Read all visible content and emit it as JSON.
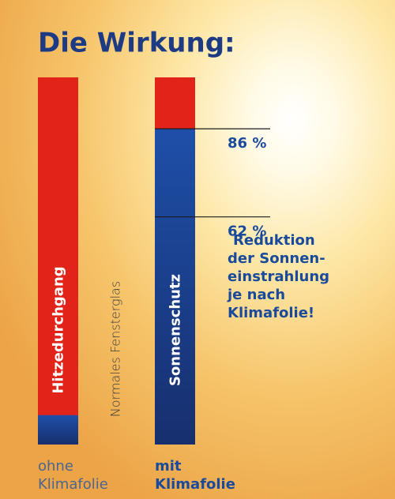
{
  "chart_data": {
    "type": "bar",
    "title": "Die Wirkung:",
    "ylim": [
      0,
      100
    ],
    "top_color": "#e2231a",
    "bars": [
      {
        "name": "Hitzedurchgang",
        "side_label": "Normales Fensterglas",
        "caption": [
          "ohne",
          "Klimafolie"
        ],
        "value": 8,
        "color": "#1b3f8c"
      },
      {
        "name": "Sonnenschutz",
        "caption": [
          "mit",
          "Klimafolie"
        ],
        "value": 86,
        "color": "#1b3f8c",
        "markers": [
          {
            "value": 86,
            "label": "86 %"
          },
          {
            "value": 62,
            "label": "62 %"
          }
        ]
      }
    ],
    "note": [
      "Reduktion",
      "der Sonnen-",
      "einstrahlung",
      "je nach",
      "Klimafolie!"
    ]
  }
}
